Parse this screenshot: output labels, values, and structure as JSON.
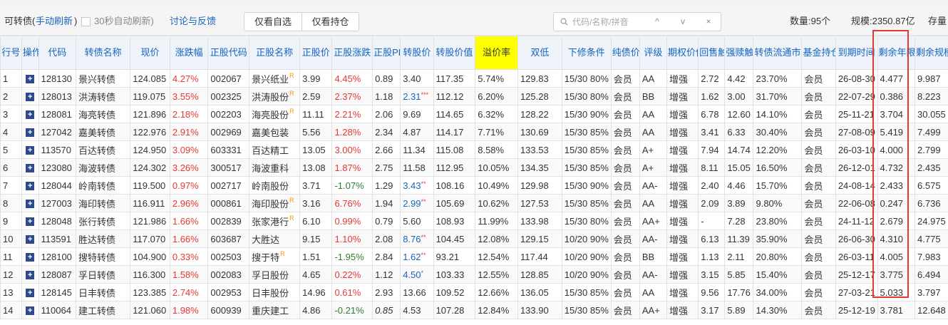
{
  "toolbar": {
    "title": "可转债(",
    "refresh_label": "手动刷新",
    "title_close": ")",
    "auto_refresh_label": "30秒自动刷新)",
    "discuss_label": "讨论与反馈",
    "filter_buttons": [
      "仅看自选",
      "仅看持仓"
    ],
    "search_placeholder": "代码/名称/拼音",
    "search_up": "^",
    "search_down": "v",
    "search_clear": "×",
    "count_text": "数量:95个",
    "scale_text": "规模:2350.87亿",
    "stock_text": "存量"
  },
  "columns": [
    "行号",
    "操作",
    "代码",
    "转债名称",
    "现价",
    "涨跌幅",
    "正股代码",
    "正股名称",
    "正股价",
    "正股涨跌",
    "正股PB",
    "转股价",
    "转股价值",
    "溢价率",
    "双低",
    "下修条件",
    "纯债价值",
    "评级",
    "期权价值",
    "回售触发价",
    "强赎触发价",
    "转债流通市值占比",
    "基金持仓",
    "到期时间",
    "剩余年限",
    "剩余规模(亿元)"
  ],
  "highlight_column": "溢价率",
  "boxed_column": "剩余年限",
  "colors": {
    "up": "#e53935",
    "down": "#2e7d32",
    "link": "#1565c0",
    "header_bg": "#eef3f9",
    "highlight_bg": "#ffff00",
    "box": "#e53935"
  },
  "rows": [
    {
      "no": "1",
      "code": "128130",
      "name": "景兴转债",
      "price": "124.085",
      "chg": "4.27%",
      "scode": "002067",
      "sname": "景兴纸业",
      "sname_sup": "R",
      "sprice": "3.99",
      "schg": "4.45%",
      "pb": "0.89",
      "cprice": "3.40",
      "cprice_mark": "",
      "cvalue": "117.35",
      "premium": "5.74%",
      "dlow": "129.83",
      "adjust": "15/30 80%",
      "bond_val": "会员",
      "rating": "AA",
      "opt": "增强",
      "putback": "2.72",
      "redeem": "4.42",
      "ratio": "23.70%",
      "fund": "会员",
      "maturity": "26-08-30",
      "years": "4.477",
      "remain": "9.987"
    },
    {
      "no": "2",
      "code": "128013",
      "name": "洪涛转债",
      "price": "119.075",
      "chg": "3.55%",
      "scode": "002325",
      "sname": "洪涛股份",
      "sname_sup": "R",
      "sprice": "2.59",
      "schg": "2.37%",
      "pb": "1.18",
      "cprice": "2.31",
      "cprice_mark": "***",
      "cvalue": "112.12",
      "premium": "6.20%",
      "dlow": "125.28",
      "adjust": "15/30 80%",
      "bond_val": "会员",
      "rating": "BB",
      "opt": "增强",
      "putback": "1.62",
      "redeem": "3.00",
      "ratio": "31.70%",
      "fund": "会员",
      "maturity": "22-07-29",
      "years": "0.386",
      "remain": "8.223"
    },
    {
      "no": "3",
      "code": "128081",
      "name": "海亮转债",
      "price": "121.896",
      "chg": "2.18%",
      "scode": "002203",
      "sname": "海亮股份",
      "sname_sup": "R",
      "sprice": "11.11",
      "schg": "2.21%",
      "pb": "2.06",
      "cprice": "9.69",
      "cprice_mark": "",
      "cvalue": "114.65",
      "premium": "6.32%",
      "dlow": "128.22",
      "adjust": "15/30 90%",
      "bond_val": "会员",
      "rating": "AA",
      "opt": "增强",
      "putback": "6.78",
      "redeem": "12.60",
      "ratio": "14.10%",
      "fund": "会员",
      "maturity": "25-11-21",
      "years": "3.704",
      "remain": "30.055"
    },
    {
      "no": "4",
      "code": "127042",
      "name": "嘉美转债",
      "price": "122.976",
      "chg": "2.91%",
      "scode": "002969",
      "sname": "嘉美包装",
      "sname_sup": "",
      "sprice": "5.56",
      "schg": "1.28%",
      "pb": "2.34",
      "cprice": "4.87",
      "cprice_mark": "",
      "cvalue": "114.17",
      "premium": "7.71%",
      "dlow": "130.69",
      "adjust": "15/30 85%",
      "bond_val": "会员",
      "rating": "AA",
      "opt": "增强",
      "putback": "3.41",
      "redeem": "6.33",
      "ratio": "30.40%",
      "fund": "会员",
      "maturity": "27-08-09",
      "years": "5.419",
      "remain": "7.499"
    },
    {
      "no": "5",
      "code": "113570",
      "name": "百达转债",
      "price": "124.950",
      "chg": "3.09%",
      "scode": "603331",
      "sname": "百达精工",
      "sname_sup": "",
      "sprice": "13.05",
      "schg": "3.00%",
      "pb": "2.66",
      "cprice": "11.34",
      "cprice_mark": "",
      "cvalue": "115.08",
      "premium": "8.58%",
      "dlow": "133.53",
      "adjust": "15/30 85%",
      "bond_val": "会员",
      "rating": "A+",
      "opt": "增强",
      "putback": "7.94",
      "redeem": "14.74",
      "ratio": "12.20%",
      "fund": "会员",
      "maturity": "26-03-10",
      "years": "4.000",
      "remain": "2.799"
    },
    {
      "no": "6",
      "code": "123080",
      "name": "海波转债",
      "price": "124.302",
      "chg": "3.26%",
      "scode": "300517",
      "sname": "海波重科",
      "sname_sup": "",
      "sprice": "13.08",
      "schg": "1.87%",
      "pb": "2.75",
      "cprice": "11.58",
      "cprice_mark": "",
      "cvalue": "112.95",
      "premium": "10.05%",
      "dlow": "134.35",
      "adjust": "15/30 85%",
      "bond_val": "会员",
      "rating": "A+",
      "opt": "增强",
      "putback": "8.11",
      "redeem": "15.05",
      "ratio": "16.50%",
      "fund": "会员",
      "maturity": "26-12-01",
      "years": "4.732",
      "remain": "2.435"
    },
    {
      "no": "7",
      "code": "128044",
      "name": "岭南转债",
      "price": "119.500",
      "chg": "0.97%",
      "scode": "002717",
      "sname": "岭南股份",
      "sname_sup": "",
      "sprice": "3.71",
      "schg": "-1.07%",
      "pb": "1.29",
      "cprice": "3.43",
      "cprice_mark": "**",
      "cvalue": "108.16",
      "premium": "10.49%",
      "dlow": "129.98",
      "adjust": "15/30 90%",
      "bond_val": "会员",
      "rating": "AA-",
      "opt": "增强",
      "putback": "2.40",
      "redeem": "4.46",
      "ratio": "15.70%",
      "fund": "会员",
      "maturity": "24-08-14",
      "years": "2.433",
      "remain": "6.575"
    },
    {
      "no": "8",
      "code": "127003",
      "name": "海印转债",
      "price": "116.911",
      "chg": "2.96%",
      "scode": "000861",
      "sname": "海印股份",
      "sname_sup": "R",
      "sprice": "3.16",
      "schg": "6.76%",
      "pb": "1.94",
      "cprice": "2.99",
      "cprice_mark": "**",
      "cvalue": "105.69",
      "premium": "10.62%",
      "dlow": "127.53",
      "adjust": "15/30 85%",
      "bond_val": "会员",
      "rating": "AA",
      "opt": "增强",
      "putback": "2.09",
      "redeem": "3.89",
      "ratio": "9.80%",
      "fund": "会员",
      "maturity": "22-06-08",
      "years": "0.247",
      "remain": "6.736"
    },
    {
      "no": "9",
      "code": "128048",
      "name": "张行转债",
      "price": "121.986",
      "chg": "1.66%",
      "scode": "002839",
      "sname": "张家港行",
      "sname_sup": "R",
      "sprice": "6.10",
      "schg": "0.99%",
      "pb": "0.79",
      "cprice": "5.60",
      "cprice_mark": "",
      "cvalue": "108.93",
      "premium": "11.99%",
      "dlow": "133.98",
      "adjust": "15/30 80%",
      "bond_val": "会员",
      "rating": "AA+",
      "opt": "增强",
      "putback": "-",
      "redeem": "7.28",
      "ratio": "23.80%",
      "fund": "会员",
      "maturity": "24-11-12",
      "years": "2.679",
      "remain": "24.975"
    },
    {
      "no": "10",
      "code": "113591",
      "name": "胜达转债",
      "price": "117.070",
      "chg": "1.66%",
      "scode": "603687",
      "sname": "大胜达",
      "sname_sup": "",
      "sprice": "9.15",
      "schg": "1.10%",
      "pb": "2.08",
      "cprice": "8.76",
      "cprice_mark": "**",
      "cvalue": "104.45",
      "premium": "12.08%",
      "dlow": "129.15",
      "adjust": "10/20 90%",
      "bond_val": "会员",
      "rating": "AA-",
      "opt": "增强",
      "putback": "6.13",
      "redeem": "11.39",
      "ratio": "35.90%",
      "fund": "会员",
      "maturity": "26-06-30",
      "years": "4.310",
      "remain": "4.775"
    },
    {
      "no": "11",
      "code": "128100",
      "name": "搜特转债",
      "price": "104.900",
      "chg": "0.33%",
      "scode": "002503",
      "sname": "搜于特",
      "sname_sup": "R",
      "sprice": "1.51",
      "schg": "-1.95%",
      "pb": "2.84",
      "cprice": "1.62",
      "cprice_mark": "**",
      "cvalue": "93.21",
      "premium": "12.54%",
      "dlow": "117.44",
      "adjust": "10/20 90%",
      "bond_val": "会员",
      "rating": "BB",
      "opt": "增强",
      "putback": "1.13",
      "redeem": "2.11",
      "ratio": "20.80%",
      "fund": "会员",
      "maturity": "26-03-11",
      "years": "4.005",
      "remain": "7.983"
    },
    {
      "no": "12",
      "code": "128087",
      "name": "孚日转债",
      "price": "116.300",
      "chg": "1.58%",
      "scode": "002083",
      "sname": "孚日股份",
      "sname_sup": "",
      "sprice": "4.65",
      "schg": "0.22%",
      "pb": "1.12",
      "cprice": "4.50",
      "cprice_mark": "*",
      "cvalue": "103.33",
      "premium": "12.55%",
      "dlow": "128.85",
      "adjust": "10/20 90%",
      "bond_val": "会员",
      "rating": "AA-",
      "opt": "增强",
      "putback": "3.15",
      "redeem": "5.85",
      "ratio": "15.40%",
      "fund": "会员",
      "maturity": "25-12-17",
      "years": "3.775",
      "remain": "6.494"
    },
    {
      "no": "13",
      "code": "128145",
      "name": "日丰转债",
      "price": "123.385",
      "chg": "2.74%",
      "scode": "002953",
      "sname": "日丰股份",
      "sname_sup": "",
      "sprice": "14.96",
      "schg": "0.61%",
      "pb": "2.93",
      "cprice": "13.66",
      "cprice_mark": "",
      "cvalue": "109.52",
      "premium": "12.66%",
      "dlow": "136.05",
      "adjust": "15/30 85%",
      "bond_val": "会员",
      "rating": "AA",
      "opt": "增强",
      "putback": "9.56",
      "redeem": "17.76",
      "ratio": "34.00%",
      "fund": "会员",
      "maturity": "27-03-21",
      "years": "5.033",
      "remain": "3.797"
    },
    {
      "no": "14",
      "code": "110064",
      "name": "建工转债",
      "price": "121.060",
      "chg": "1.98%",
      "scode": "600939",
      "sname": "重庆建工",
      "sname_sup": "",
      "sprice": "4.86",
      "schg": "-0.21%",
      "pb": "0.85",
      "cprice": "4.53",
      "cprice_mark": "",
      "cvalue": "107.28",
      "premium": "12.84%",
      "dlow": "133.90",
      "adjust": "15/30 85%",
      "bond_val": "会员",
      "rating": "AA+",
      "opt": "增强",
      "putback": "3.17",
      "redeem": "5.89",
      "ratio": "14.30%",
      "fund": "会员",
      "maturity": "25-12-19",
      "years": "3.781",
      "remain": "12.648"
    }
  ]
}
